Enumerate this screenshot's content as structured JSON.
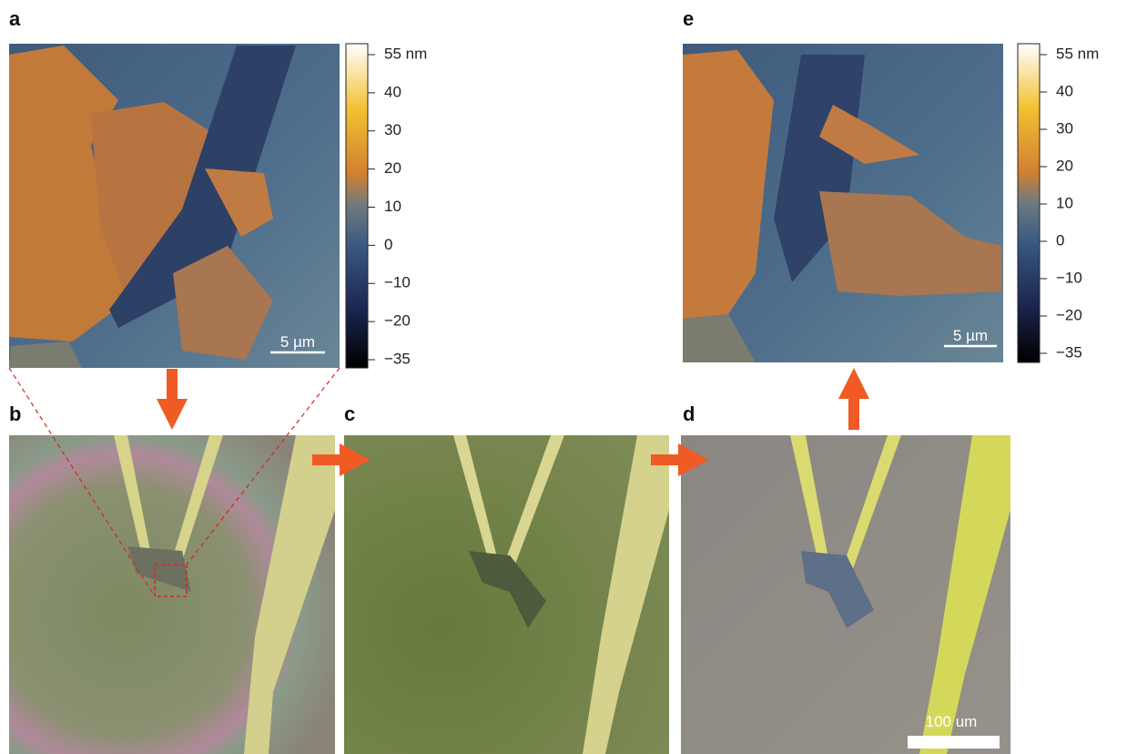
{
  "panels": {
    "a": {
      "label": "a",
      "scale_bar": "5 µm",
      "colorbar": [
        "55 nm",
        "40",
        "30",
        "20",
        "10",
        "0",
        "−10",
        "−20",
        "−35"
      ]
    },
    "b": {
      "label": "b"
    },
    "c": {
      "label": "c"
    },
    "d": {
      "label": "d",
      "scale_bar": "100 um"
    },
    "e": {
      "label": "e",
      "scale_bar": "5 µm",
      "colorbar": [
        "55 nm",
        "40",
        "30",
        "20",
        "10",
        "0",
        "−10",
        "−20",
        "−35"
      ]
    }
  }
}
